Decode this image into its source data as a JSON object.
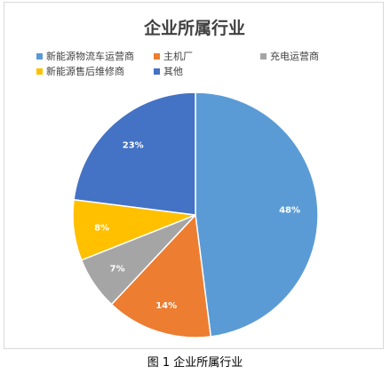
{
  "caption": "图 1 企业所属行业",
  "chart_data": {
    "type": "pie",
    "title": "企业所属行业",
    "legend_position": "top",
    "slices": [
      {
        "label": "新能源物流车运营商",
        "value": 48,
        "display": "48%",
        "color": "#5b9bd5"
      },
      {
        "label": "主机厂",
        "value": 14,
        "display": "14%",
        "color": "#ed7d31"
      },
      {
        "label": "充电运营商",
        "value": 7,
        "display": "7%",
        "color": "#a5a5a5"
      },
      {
        "label": "新能源售后维修商",
        "value": 8,
        "display": "8%",
        "color": "#ffc000"
      },
      {
        "label": "其他",
        "value": 23,
        "display": "23%",
        "color": "#4472c4"
      }
    ]
  }
}
